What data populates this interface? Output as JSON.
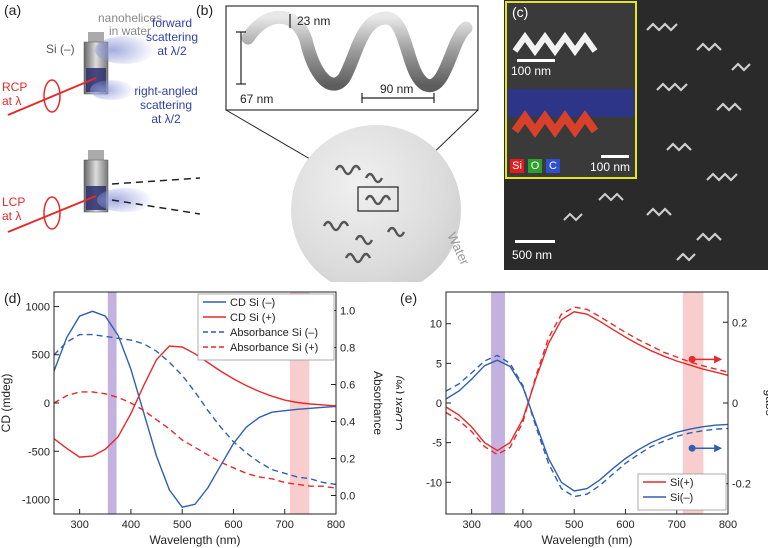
{
  "figure": {
    "panel_labels": [
      "(a)",
      "(b)",
      "(c)",
      "(d)",
      "(e)"
    ],
    "panel_a": {
      "nanohelices": "nanohelices",
      "in_water": "in water",
      "si_minus": "Si (–)",
      "forward": "forward",
      "scattering": "scattering",
      "at_half": "at λ/2",
      "right_angled": "right-angled",
      "scattering2": "scattering",
      "at_half2": "at λ/2",
      "rcp": "RCP",
      "rcp_at": "at λ",
      "lcp": "LCP",
      "lcp_at": "at λ"
    },
    "panel_b": {
      "dim_23": "23 nm",
      "dim_67": "67 nm",
      "dim_90": "90 nm",
      "water": "Water"
    },
    "panel_c": {
      "scale_100a": "100 nm",
      "scale_100b": "100 nm",
      "scale_500": "500 nm",
      "legend_si": "Si",
      "legend_o": "O",
      "legend_c": "C"
    }
  },
  "colors": {
    "red": "#e8292a",
    "blue": "#2f5fb3",
    "purple_band": "#b9a3d9",
    "pink_band": "#f4b8b8"
  },
  "chart_data": [
    {
      "type": "line",
      "panel": "(d)",
      "xlabel": "Wavelength (nm)",
      "ylabel": "CD (mdeg)",
      "ylabel_right": "Absorbance",
      "xlim": [
        250,
        800
      ],
      "ylim": [
        -1150,
        1150
      ],
      "ylim_right": [
        -0.1,
        1.1
      ],
      "x_ticks": [
        "300",
        "400",
        "500",
        "600",
        "700",
        "800"
      ],
      "y_ticks": [
        "-1000",
        "-500",
        "0",
        "500",
        "1000"
      ],
      "y_ticks_right": [
        "0.0",
        "0.2",
        "0.4",
        "0.6",
        "0.8",
        "1.0"
      ],
      "bands": [
        [
          355,
          372
        ],
        [
          710,
          748
        ]
      ],
      "legend": [
        "CD Si (–)",
        "CD Si (+)",
        "Absorbance Si (–)",
        "Absorbance Si (+)"
      ],
      "x": [
        250,
        275,
        300,
        325,
        350,
        375,
        400,
        425,
        450,
        475,
        500,
        525,
        550,
        575,
        600,
        625,
        650,
        675,
        700,
        725,
        750,
        775,
        800
      ],
      "series": [
        {
          "name": "CD Si (–)",
          "axis": "left",
          "style": "solid",
          "color": "blue",
          "values": [
            330,
            680,
            900,
            950,
            900,
            700,
            350,
            -100,
            -550,
            -900,
            -1080,
            -1050,
            -880,
            -650,
            -420,
            -250,
            -150,
            -95,
            -80,
            -65,
            -55,
            -45,
            -35
          ]
        },
        {
          "name": "CD Si (+)",
          "axis": "left",
          "style": "solid",
          "color": "red",
          "values": [
            -370,
            -470,
            -560,
            -550,
            -480,
            -350,
            -110,
            180,
            450,
            590,
            580,
            510,
            420,
            330,
            250,
            180,
            120,
            70,
            30,
            5,
            -10,
            -20,
            -30
          ]
        },
        {
          "name": "Absorbance Si (–)",
          "axis": "right",
          "style": "dashed",
          "color": "blue",
          "values": [
            0.76,
            0.83,
            0.87,
            0.87,
            0.86,
            0.85,
            0.84,
            0.82,
            0.78,
            0.72,
            0.65,
            0.56,
            0.46,
            0.37,
            0.29,
            0.23,
            0.18,
            0.14,
            0.12,
            0.1,
            0.09,
            0.07,
            0.06
          ]
        },
        {
          "name": "Absorbance Si (+)",
          "axis": "right",
          "style": "dashed",
          "color": "red",
          "values": [
            0.5,
            0.54,
            0.56,
            0.56,
            0.55,
            0.53,
            0.5,
            0.46,
            0.41,
            0.36,
            0.3,
            0.26,
            0.22,
            0.18,
            0.15,
            0.12,
            0.1,
            0.09,
            0.07,
            0.06,
            0.05,
            0.05,
            0.04
          ]
        }
      ]
    },
    {
      "type": "line",
      "panel": "(e)",
      "xlabel": "Wavelength (nm)",
      "ylabel": "CD_ext (%)",
      "ylabel_right": "g_abs",
      "xlim": [
        250,
        800
      ],
      "ylim": [
        -14,
        14
      ],
      "ylim_right": [
        -0.275,
        0.275
      ],
      "x_ticks": [
        "300",
        "400",
        "500",
        "600",
        "700",
        "800"
      ],
      "y_ticks": [
        "-10",
        "-5",
        "0",
        "5",
        "10"
      ],
      "y_ticks_right": [
        "-0.2",
        "0",
        "0.2"
      ],
      "bands": [
        [
          338,
          365
        ],
        [
          712,
          752
        ]
      ],
      "legend": [
        "Si(+)",
        "Si(–)"
      ],
      "x": [
        250,
        275,
        300,
        325,
        350,
        375,
        400,
        425,
        450,
        475,
        500,
        525,
        550,
        575,
        600,
        625,
        650,
        675,
        700,
        725,
        750,
        775,
        800
      ],
      "series": [
        {
          "name": "Si(+)",
          "axis": "left",
          "style": "solid",
          "color": "red",
          "values": [
            -0.5,
            -1.5,
            -3,
            -5,
            -6,
            -5,
            -2,
            3,
            7.5,
            10.5,
            11.5,
            11.2,
            10.3,
            9.3,
            8.3,
            7.4,
            6.6,
            5.9,
            5.3,
            4.8,
            4.3,
            3.9,
            3.5
          ]
        },
        {
          "name": "Si(+) dashed",
          "axis": "left",
          "style": "dashed",
          "color": "red",
          "values": [
            -1.2,
            -2.2,
            -3.6,
            -5.5,
            -6.5,
            -5.6,
            -2.4,
            3.3,
            8.2,
            11.2,
            12.1,
            11.8,
            10.9,
            9.9,
            8.9,
            8.0,
            7.2,
            6.4,
            5.8,
            5.2,
            4.7,
            4.3,
            3.9
          ]
        },
        {
          "name": "Si(–)",
          "axis": "left",
          "style": "solid",
          "color": "blue",
          "values": [
            0.5,
            1.5,
            3,
            4.7,
            5.4,
            4.6,
            2,
            -2.5,
            -7,
            -10,
            -11.1,
            -10.8,
            -9.7,
            -8.3,
            -7.0,
            -5.9,
            -5.0,
            -4.3,
            -3.7,
            -3.3,
            -3.0,
            -2.8,
            -2.7
          ]
        },
        {
          "name": "Si(–) dashed",
          "axis": "left",
          "style": "dashed",
          "color": "blue",
          "values": [
            1.5,
            2.4,
            3.8,
            5.3,
            6.0,
            5.0,
            2.2,
            -2.9,
            -7.6,
            -10.8,
            -11.8,
            -11.5,
            -10.4,
            -9.0,
            -7.6,
            -6.5,
            -5.5,
            -4.8,
            -4.2,
            -3.8,
            -3.5,
            -3.3,
            -3.2
          ]
        }
      ]
    }
  ]
}
